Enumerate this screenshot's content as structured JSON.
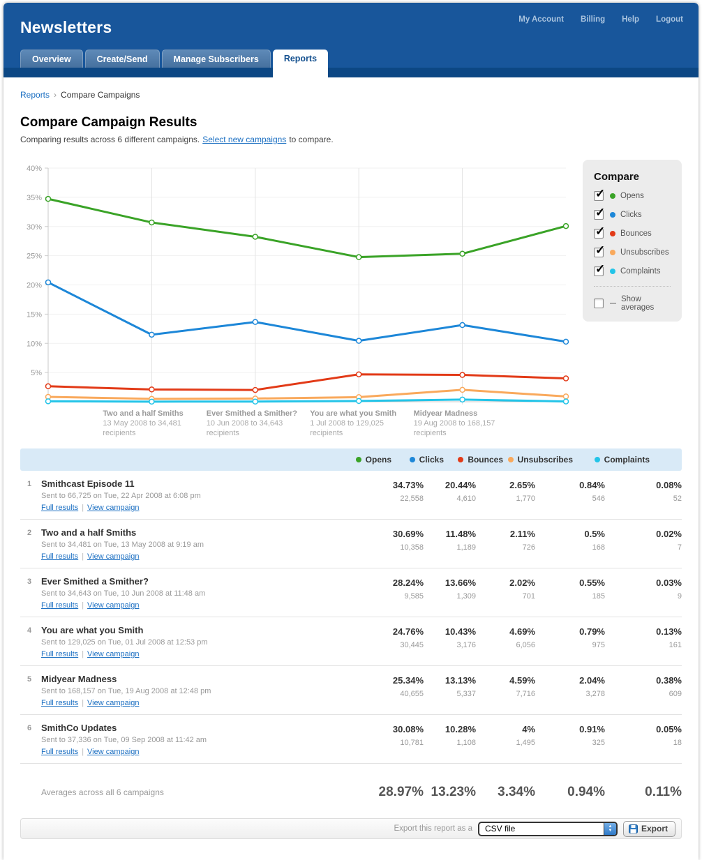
{
  "header": {
    "title": "Newsletters",
    "nav": [
      "My Account",
      "Billing",
      "Help",
      "Logout"
    ],
    "tabs": [
      {
        "label": "Overview",
        "active": false
      },
      {
        "label": "Create/Send",
        "active": false
      },
      {
        "label": "Manage Subscribers",
        "active": false
      },
      {
        "label": "Reports",
        "active": true
      }
    ]
  },
  "breadcrumb": {
    "link": "Reports",
    "separator": "›",
    "current": "Compare Campaigns"
  },
  "page": {
    "title": "Compare Campaign Results",
    "subtitle_prefix": "Comparing results across 6 different campaigns.",
    "subtitle_link": "Select new campaigns",
    "subtitle_suffix": "to compare."
  },
  "compare_panel": {
    "title": "Compare",
    "items": [
      {
        "label": "Opens",
        "color": "#3aa327",
        "checked": true
      },
      {
        "label": "Clicks",
        "color": "#1d87d8",
        "checked": true
      },
      {
        "label": "Bounces",
        "color": "#e23a17",
        "checked": true
      },
      {
        "label": "Unsubscribes",
        "color": "#f9a95c",
        "checked": true
      },
      {
        "label": "Complaints",
        "color": "#23c4e8",
        "checked": true
      }
    ],
    "show_averages_label": "Show averages",
    "show_averages_checked": false
  },
  "chart_data": {
    "type": "line",
    "title": "Campaign comparison",
    "xlabel": "",
    "ylabel": "",
    "ylim": [
      0,
      40
    ],
    "ytick_step": 5,
    "ytick_labels": [
      "5%",
      "10%",
      "15%",
      "20%",
      "25%",
      "30%",
      "35%",
      "40%"
    ],
    "grid": true,
    "legend_position": "right",
    "categories": [
      "Smithcast Episode 11",
      "Two and a half Smiths",
      "Ever Smithed a Smither?",
      "You are what you Smith",
      "Midyear Madness",
      "SmithCo Updates"
    ],
    "series": [
      {
        "name": "Opens",
        "color": "#3aa327",
        "values": [
          34.73,
          30.69,
          28.24,
          24.76,
          25.34,
          30.08
        ]
      },
      {
        "name": "Clicks",
        "color": "#1d87d8",
        "values": [
          20.44,
          11.48,
          13.66,
          10.43,
          13.13,
          10.28
        ]
      },
      {
        "name": "Bounces",
        "color": "#e23a17",
        "values": [
          2.65,
          2.11,
          2.02,
          4.69,
          4.59,
          4.0
        ]
      },
      {
        "name": "Unsubscribes",
        "color": "#f9a95c",
        "values": [
          0.84,
          0.5,
          0.55,
          0.79,
          2.04,
          0.91
        ]
      },
      {
        "name": "Complaints",
        "color": "#23c4e8",
        "values": [
          0.08,
          0.02,
          0.03,
          0.13,
          0.38,
          0.05
        ]
      }
    ],
    "x_axis_labels": [
      {
        "index": 1,
        "name": "Two and a half Smiths",
        "line2": "13 May 2008 to 34,481",
        "line3": "recipients"
      },
      {
        "index": 2,
        "name": "Ever Smithed a Smither?",
        "line2": "10 Jun 2008 to 34,643",
        "line3": "recipients"
      },
      {
        "index": 3,
        "name": "You are what you Smith",
        "line2": "1 Jul 2008 to 129,025",
        "line3": "recipients"
      },
      {
        "index": 4,
        "name": "Midyear Madness",
        "line2": "19 Aug 2008 to 168,157",
        "line3": "recipients"
      }
    ]
  },
  "table": {
    "columns": [
      {
        "label": "Opens",
        "color": "#3aa327"
      },
      {
        "label": "Clicks",
        "color": "#1d87d8"
      },
      {
        "label": "Bounces",
        "color": "#e23a17"
      },
      {
        "label": "Unsubscribes",
        "color": "#f9a95c"
      },
      {
        "label": "Complaints",
        "color": "#23c4e8"
      }
    ],
    "link_labels": [
      "Full results",
      "View campaign"
    ],
    "link_separator": "|",
    "rows": [
      {
        "num": "1",
        "name": "Smithcast Episode 11",
        "sent": "Sent to 66,725 on Tue, 22 Apr 2008 at 6:08 pm",
        "values": [
          {
            "pct": "34.73%",
            "count": "22,558"
          },
          {
            "pct": "20.44%",
            "count": "4,610"
          },
          {
            "pct": "2.65%",
            "count": "1,770"
          },
          {
            "pct": "0.84%",
            "count": "546"
          },
          {
            "pct": "0.08%",
            "count": "52"
          }
        ]
      },
      {
        "num": "2",
        "name": "Two and a half Smiths",
        "sent": "Sent to 34,481 on Tue, 13 May 2008 at 9:19 am",
        "values": [
          {
            "pct": "30.69%",
            "count": "10,358"
          },
          {
            "pct": "11.48%",
            "count": "1,189"
          },
          {
            "pct": "2.11%",
            "count": "726"
          },
          {
            "pct": "0.5%",
            "count": "168"
          },
          {
            "pct": "0.02%",
            "count": "7"
          }
        ]
      },
      {
        "num": "3",
        "name": "Ever Smithed a Smither?",
        "sent": "Sent to 34,643 on Tue, 10 Jun 2008 at 11:48 am",
        "values": [
          {
            "pct": "28.24%",
            "count": "9,585"
          },
          {
            "pct": "13.66%",
            "count": "1,309"
          },
          {
            "pct": "2.02%",
            "count": "701"
          },
          {
            "pct": "0.55%",
            "count": "185"
          },
          {
            "pct": "0.03%",
            "count": "9"
          }
        ]
      },
      {
        "num": "4",
        "name": "You are what you Smith",
        "sent": "Sent to 129,025 on Tue, 01 Jul 2008 at 12:53 pm",
        "values": [
          {
            "pct": "24.76%",
            "count": "30,445"
          },
          {
            "pct": "10.43%",
            "count": "3,176"
          },
          {
            "pct": "4.69%",
            "count": "6,056"
          },
          {
            "pct": "0.79%",
            "count": "975"
          },
          {
            "pct": "0.13%",
            "count": "161"
          }
        ]
      },
      {
        "num": "5",
        "name": "Midyear Madness",
        "sent": "Sent to 168,157 on Tue, 19 Aug 2008 at 12:48 pm",
        "values": [
          {
            "pct": "25.34%",
            "count": "40,655"
          },
          {
            "pct": "13.13%",
            "count": "5,337"
          },
          {
            "pct": "4.59%",
            "count": "7,716"
          },
          {
            "pct": "2.04%",
            "count": "3,278"
          },
          {
            "pct": "0.38%",
            "count": "609"
          }
        ]
      },
      {
        "num": "6",
        "name": "SmithCo Updates",
        "sent": "Sent to 37,336 on Tue, 09 Sep 2008 at 11:42 am",
        "values": [
          {
            "pct": "30.08%",
            "count": "10,781"
          },
          {
            "pct": "10.28%",
            "count": "1,108"
          },
          {
            "pct": "4%",
            "count": "1,495"
          },
          {
            "pct": "0.91%",
            "count": "325"
          },
          {
            "pct": "0.05%",
            "count": "18"
          }
        ]
      }
    ],
    "averages": {
      "label": "Averages across all 6 campaigns",
      "values": [
        "28.97%",
        "13.23%",
        "3.34%",
        "0.94%",
        "0.11%"
      ]
    }
  },
  "footer": {
    "export_label": "Export this report as a",
    "select_value": "CSV file",
    "export_button": "Export"
  },
  "colors": {
    "masthead": "#18569b",
    "masthead_strip": "#0c4784",
    "link": "#1b6fc2",
    "table_header_bg": "#d9eaf7"
  }
}
